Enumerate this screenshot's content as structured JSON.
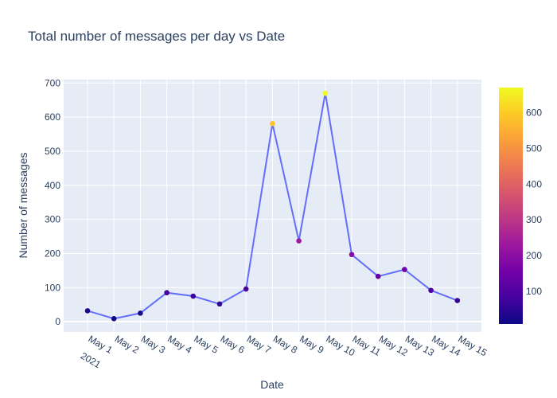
{
  "chart_data": {
    "type": "line",
    "title": "Total number of messages per day vs Date",
    "xlabel": "Date",
    "ylabel": "Number of messages",
    "x": [
      "2021-05-01",
      "2021-05-02",
      "2021-05-03",
      "2021-05-04",
      "2021-05-05",
      "2021-05-06",
      "2021-05-07",
      "2021-05-08",
      "2021-05-09",
      "2021-05-10",
      "2021-05-11",
      "2021-05-12",
      "2021-05-13",
      "2021-05-14",
      "2021-05-15"
    ],
    "x_tick_labels": [
      "May 1",
      "May 2",
      "May 3",
      "May 4",
      "May 5",
      "May 6",
      "May 7",
      "May 8",
      "May 9",
      "May 10",
      "May 11",
      "May 12",
      "May 13",
      "May 14",
      "May 15"
    ],
    "x_year_label": "2021",
    "values": [
      32,
      9,
      25,
      85,
      75,
      52,
      96,
      581,
      237,
      670,
      197,
      133,
      153,
      92,
      62
    ],
    "ylim": [
      -30,
      710
    ],
    "y_ticks": [
      0,
      100,
      200,
      300,
      400,
      500,
      600,
      700
    ],
    "colorbar": {
      "range": [
        9,
        670
      ],
      "ticks": [
        100,
        200,
        300,
        400,
        500,
        600
      ]
    },
    "colorscale": "plasma",
    "grid": true,
    "line_color": "#636efa",
    "plot_bg": "#e5ecf6"
  }
}
